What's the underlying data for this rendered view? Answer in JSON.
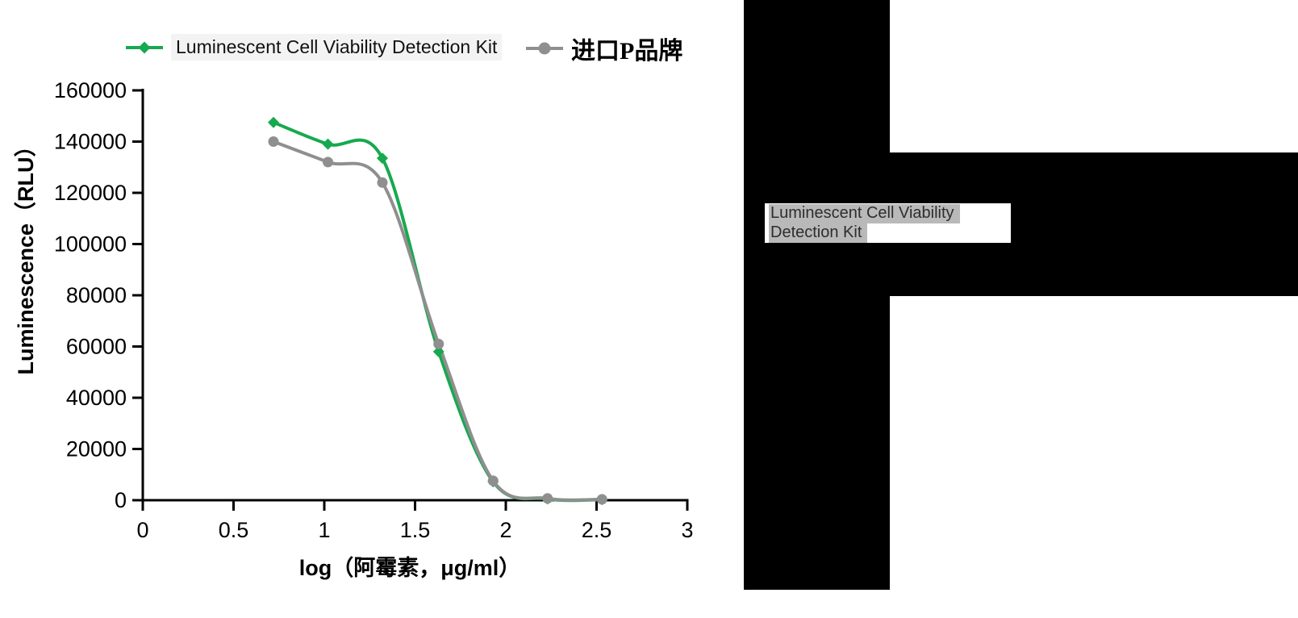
{
  "figure": {
    "background": "#ffffff",
    "axis_color": "#000000"
  },
  "legend": {
    "position": "top",
    "items": [
      {
        "label": "Luminescent Cell Viability Detection Kit",
        "marker": "diamond",
        "color": "#17a94f",
        "label_background": "#f2f3f2"
      },
      {
        "label": "进口P品牌",
        "marker": "circle",
        "color": "#8f8f8f",
        "label_background": "transparent"
      }
    ]
  },
  "chart_data": {
    "type": "line",
    "title": "",
    "xlabel": "log（阿霉素，μg/ml）",
    "ylabel": "Luminescence（RLU）",
    "xlim": [
      0,
      3
    ],
    "ylim": [
      0,
      160000
    ],
    "xticks": [
      0,
      0.5,
      1,
      1.5,
      2,
      2.5,
      3
    ],
    "yticks": [
      0,
      20000,
      40000,
      60000,
      80000,
      100000,
      120000,
      140000,
      160000
    ],
    "grid": false,
    "legend_position": "top",
    "x": [
      0.72,
      1.02,
      1.32,
      1.63,
      1.93,
      2.23,
      2.53
    ],
    "series": [
      {
        "name": "Luminescent Cell Viability Detection Kit",
        "color": "#17a94f",
        "marker": "diamond",
        "values": [
          147500,
          139000,
          133500,
          58000,
          7200,
          500,
          250
        ]
      },
      {
        "name": "进口P品牌",
        "color": "#8f8f8f",
        "marker": "circle",
        "values": [
          140000,
          132000,
          124000,
          61000,
          7600,
          700,
          350
        ]
      }
    ]
  },
  "redaction": {
    "block_color": "#000000",
    "overlay": {
      "line1": "Luminescent Cell Viability",
      "line2": "Detection Kit",
      "box_background": "#ffffff",
      "highlight_color": "#b9b9b9",
      "text_color": "#2d2d2d"
    }
  }
}
